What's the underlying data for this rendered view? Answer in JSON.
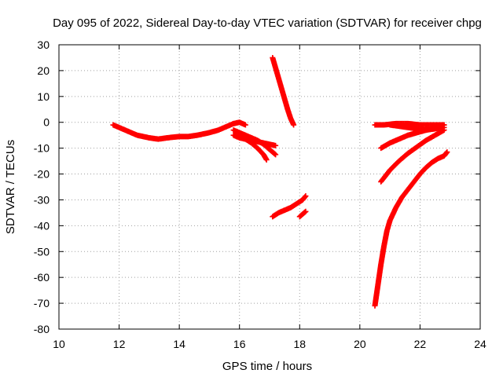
{
  "chart_data": {
    "type": "scatter",
    "title": "Day 095 of 2022, Sidereal Day-to-day VTEC variation (SDTVAR) for receiver chpg",
    "xlabel": "GPS time / hours",
    "ylabel": "SDTVAR / TECUs",
    "xlim": [
      10,
      24
    ],
    "ylim": [
      -80,
      30
    ],
    "xticks": [
      10,
      12,
      14,
      16,
      18,
      20,
      22,
      24
    ],
    "yticks": [
      30,
      20,
      10,
      0,
      -10,
      -20,
      -30,
      -40,
      -50,
      -60,
      -70,
      -80
    ],
    "grid": true,
    "marker": "+",
    "color": "#ff0000",
    "series": [
      {
        "x": [
          11.8,
          12.0,
          12.3,
          12.6,
          13.0,
          13.3,
          13.6,
          14.0,
          14.3,
          14.6,
          15.0,
          15.3,
          15.6,
          15.8,
          16.0,
          16.2
        ],
        "y": [
          -1,
          -2,
          -3.5,
          -5,
          -6,
          -6.5,
          -6,
          -5.5,
          -5.5,
          -5,
          -4,
          -3,
          -1.5,
          -0.5,
          0,
          -1
        ]
      },
      {
        "x": [
          15.8,
          16.0,
          16.2,
          16.4,
          16.6,
          16.8,
          17.0,
          17.2
        ],
        "y": [
          -5,
          -6,
          -6.5,
          -7,
          -7.5,
          -8,
          -8.5,
          -9
        ]
      },
      {
        "x": [
          15.8,
          16.0,
          16.2,
          16.4,
          16.6,
          16.8,
          17.0,
          17.2
        ],
        "y": [
          -3,
          -4,
          -5,
          -6,
          -7,
          -8.5,
          -10.5,
          -12.5
        ]
      },
      {
        "x": [
          16.0,
          16.2,
          16.4,
          16.6,
          16.8,
          16.9
        ],
        "y": [
          -5,
          -6.5,
          -8,
          -10,
          -12.5,
          -14.5
        ]
      },
      {
        "x": [
          17.1,
          17.2,
          17.3,
          17.4,
          17.5,
          17.6,
          17.7,
          17.8
        ],
        "y": [
          25,
          21,
          17,
          13,
          9,
          5,
          1.5,
          -1
        ]
      },
      {
        "x": [
          17.1,
          17.3,
          17.5,
          17.7,
          17.9,
          18.1,
          18.2
        ],
        "y": [
          -36.5,
          -35,
          -34,
          -33,
          -31.5,
          -30,
          -28.5
        ]
      },
      {
        "x": [
          18.0,
          18.1,
          18.2
        ],
        "y": [
          -36.5,
          -35.5,
          -34.5
        ]
      },
      {
        "x": [
          20.5,
          20.8,
          21.2,
          21.6,
          22.0,
          22.4,
          22.8
        ],
        "y": [
          -1,
          -1,
          -0.5,
          -0.5,
          -1,
          -1,
          -1
        ]
      },
      {
        "x": [
          21.0,
          21.3,
          21.6,
          21.9,
          22.2,
          22.5,
          22.8
        ],
        "y": [
          -1,
          -1.5,
          -2,
          -2.5,
          -3,
          -2.5,
          -2
        ]
      },
      {
        "x": [
          20.7,
          21.0,
          21.3,
          21.6,
          21.9,
          22.2,
          22.5,
          22.8
        ],
        "y": [
          -10,
          -8,
          -6.5,
          -5,
          -4,
          -3,
          -2,
          -1
        ]
      },
      {
        "x": [
          20.7,
          21.0,
          21.3,
          21.6,
          21.9,
          22.2,
          22.5,
          22.8
        ],
        "y": [
          -23,
          -18.5,
          -15,
          -12,
          -9.5,
          -7,
          -5,
          -3
        ]
      },
      {
        "x": [
          20.5,
          20.6,
          20.7,
          20.8,
          20.9,
          21.0,
          21.2,
          21.4,
          21.6,
          21.8,
          22.0,
          22.2,
          22.4,
          22.6,
          22.8,
          22.9
        ],
        "y": [
          -71,
          -63,
          -55,
          -48,
          -42,
          -38,
          -33,
          -29,
          -26,
          -23,
          -20,
          -17.5,
          -15.5,
          -14,
          -13,
          -11.5
        ]
      }
    ]
  }
}
